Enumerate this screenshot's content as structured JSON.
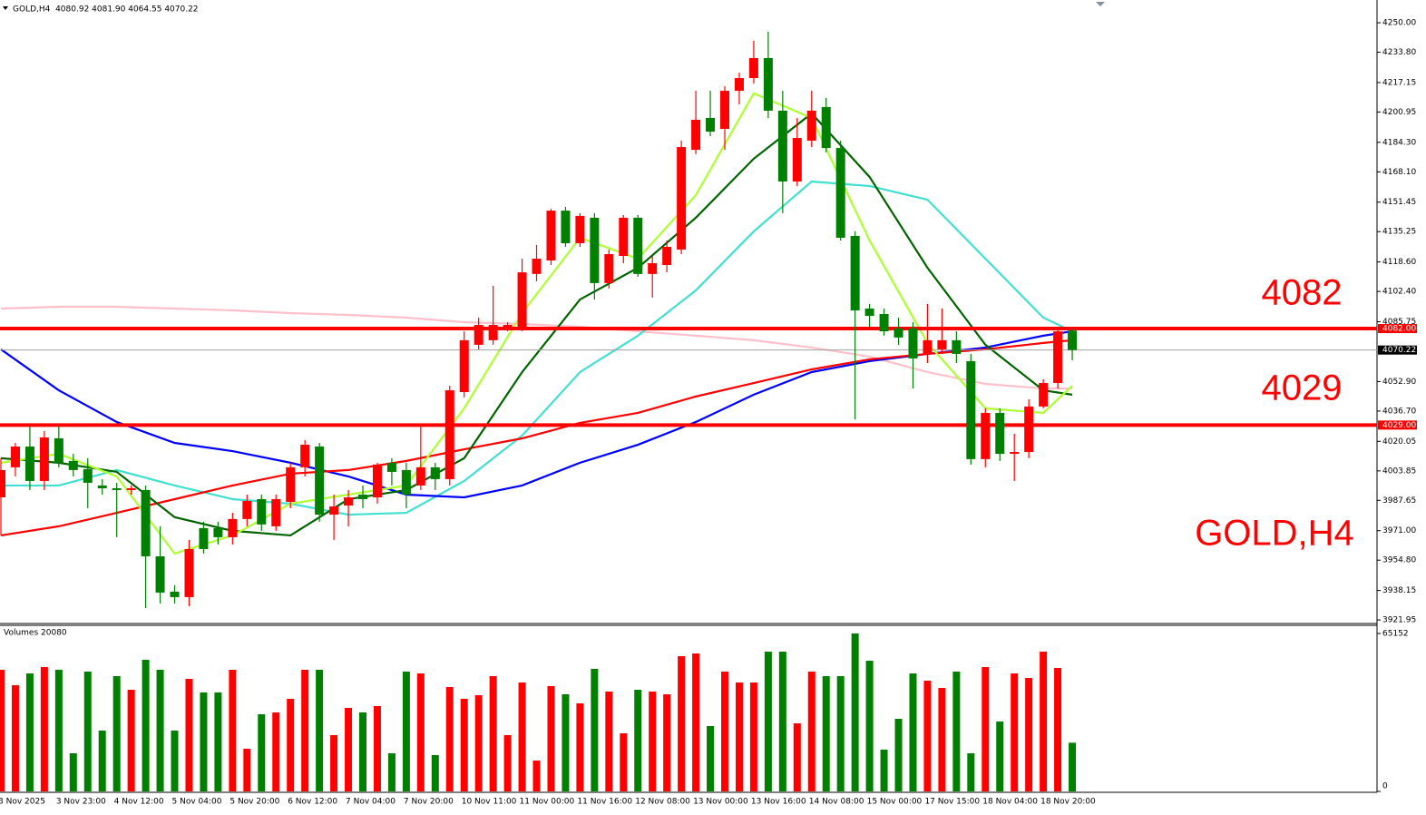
{
  "header": {
    "info": "GOLD,H4  4080.92 4081.90 4064.55 4070.22"
  },
  "chart_data": [
    {
      "type": "candlestick",
      "categories": [
        "3 Nov 2025",
        null,
        null,
        null,
        "3 Nov 23:00",
        null,
        null,
        null,
        "4 Nov 12:00",
        null,
        null,
        null,
        "5 Nov 04:00",
        null,
        null,
        null,
        "5 Nov 20:00",
        null,
        null,
        null,
        "6 Nov 12:00",
        null,
        null,
        null,
        "7 Nov 04:00",
        null,
        null,
        null,
        "7 Nov 20:00",
        null,
        null,
        null,
        "10 Nov 11:00",
        null,
        null,
        null,
        "11 Nov 00:00",
        null,
        null,
        null,
        "11 Nov 16:00",
        null,
        null,
        null,
        "12 Nov 08:00",
        null,
        null,
        null,
        "13 Nov 00:00",
        null,
        null,
        null,
        "13 Nov 16:00",
        null,
        null,
        null,
        "14 Nov 08:00",
        null,
        null,
        null,
        "15 Nov 00:00",
        null,
        null,
        null,
        "17 Nov 15:00",
        null,
        null,
        null,
        "18 Nov 04:00",
        null,
        null,
        null,
        "18 Nov 20:00",
        null,
        null
      ],
      "open": [
        3989.3,
        4005.8,
        4017.2,
        3998.3,
        4021.7,
        4009.3,
        4004.8,
        3995.8,
        3994.3,
        3993.3,
        3993.3,
        3956.9,
        3937.5,
        3934.5,
        3972.4,
        3972.4,
        3967.4,
        3977.4,
        3988.3,
        3973.4,
        3986.8,
        4005.8,
        4017.2,
        3979.8,
        3984.8,
        3990.8,
        3989.3,
        4008.3,
        4004.3,
        3995.8,
        4005.8,
        3999.3,
        4047.1,
        4073.1,
        4075.6,
        4083.0,
        4083.0,
        4112.0,
        4119.4,
        4146.8,
        4128.9,
        4142.9,
        4107.0,
        4121.9,
        4142.9,
        4112.0,
        4116.9,
        4125.4,
        4180.2,
        4197.7,
        4191.7,
        4212.6,
        4219.6,
        4230.6,
        4201.7,
        4162.8,
        4185.2,
        4203.7,
        4181.2,
        4132.9,
        4093.0,
        4090.0,
        4082.0,
        4082.0,
        4068.1,
        4070.6,
        4075.6,
        4064.1,
        4010.3,
        4035.7,
        4013.2,
        4014.2,
        4039.2,
        4052.1,
        4080.92
      ],
      "high": [
        4010.8,
        4019.2,
        4028.2,
        4025.7,
        4028.2,
        4013.2,
        4010.8,
        3999.3,
        3997.3,
        3995.8,
        3995.8,
        3973.4,
        3941.0,
        3965.9,
        3975.9,
        3975.9,
        3980.8,
        3990.8,
        3990.8,
        3990.8,
        4008.3,
        4020.7,
        4019.2,
        3990.8,
        3993.3,
        3995.8,
        4008.3,
        4010.8,
        4008.3,
        4028.2,
        4008.3,
        4050.6,
        4080.5,
        4088.0,
        4105.5,
        4085.5,
        4120.4,
        4127.9,
        4147.8,
        4148.8,
        4145.4,
        4145.4,
        4125.4,
        4144.4,
        4144.4,
        4121.9,
        4130.4,
        4185.2,
        4212.6,
        4212.6,
        4215.1,
        4222.6,
        4240.1,
        4245.1,
        4212.6,
        4197.7,
        4212.6,
        4208.7,
        4185.2,
        4135.4,
        4095.5,
        4093.0,
        4088.0,
        4085.5,
        4095.5,
        4093.0,
        4080.5,
        4068.1,
        4038.2,
        4038.2,
        4024.2,
        4043.2,
        4054.1,
        4083.0,
        4081.9
      ],
      "low": [
        3968.4,
        4000.8,
        3993.3,
        3993.3,
        4005.8,
        4000.8,
        3983.3,
        3990.8,
        3967.4,
        3990.8,
        3928.5,
        3931.0,
        3931.0,
        3929.5,
        3958.4,
        3963.4,
        3963.4,
        3973.4,
        3970.9,
        3970.9,
        3983.3,
        4000.8,
        3975.9,
        3965.9,
        3973.4,
        3983.3,
        3985.8,
        3995.8,
        3983.3,
        3993.3,
        3993.3,
        3995.8,
        4044.2,
        4070.6,
        4073.1,
        4080.5,
        4080.5,
        4108.0,
        4116.9,
        4126.9,
        4126.9,
        4098.0,
        4104.0,
        4117.9,
        4110.5,
        4099.0,
        4112.9,
        4122.9,
        4177.8,
        4187.7,
        4180.2,
        4205.2,
        4216.6,
        4197.7,
        4145.4,
        4160.3,
        4181.7,
        4178.8,
        4130.4,
        4032.2,
        4083.0,
        4078.1,
        4073.1,
        4049.1,
        4063.1,
        4068.1,
        4063.1,
        4007.3,
        4005.8,
        4009.3,
        3998.3,
        4010.8,
        4038.2,
        4049.1,
        4064.55
      ],
      "close": [
        4004.3,
        4017.2,
        3998.3,
        4022.2,
        4008.3,
        4004.3,
        3997.3,
        3994.3,
        3993.3,
        3994.3,
        3956.9,
        3937.0,
        3934.5,
        3960.9,
        3960.9,
        3967.4,
        3977.4,
        3987.3,
        3974.4,
        3988.3,
        4005.8,
        4018.2,
        3979.8,
        3984.3,
        3989.3,
        3988.3,
        4007.3,
        4003.3,
        3990.8,
        4005.8,
        3999.3,
        4048.1,
        4075.6,
        4084.0,
        4084.0,
        4084.0,
        4112.9,
        4120.4,
        4146.8,
        4128.9,
        4143.9,
        4107.0,
        4122.9,
        4142.9,
        4112.0,
        4117.9,
        4126.9,
        4181.7,
        4196.7,
        4190.2,
        4212.6,
        4219.6,
        4230.6,
        4201.7,
        4162.8,
        4186.7,
        4201.7,
        4181.2,
        4131.9,
        4092.0,
        4089.0,
        4080.5,
        4077.1,
        4065.6,
        4075.6,
        4075.6,
        4068.1,
        4010.3,
        4035.7,
        4013.2,
        4014.2,
        4039.2,
        4052.1,
        4080.5,
        4070.22
      ],
      "up_color": "#ff0000",
      "down_color": "#008000",
      "x": [
        0,
        4,
        8,
        12,
        16,
        20,
        24,
        28,
        32,
        36,
        40,
        44,
        48,
        52,
        56,
        60,
        64,
        68,
        72,
        74
      ],
      "lines": [
        {
          "color": "#ffc0cb",
          "values": [
            4093.0,
            4094.0,
            4094.0,
            4093.0,
            4092.0,
            4090.5,
            4089.5,
            4088.0,
            4085.5,
            4084.5,
            4083.0,
            4080.5,
            4078.1,
            4075.6,
            4071.6,
            4066.6,
            4058.1,
            4051.6,
            4049.1,
            4049.1
          ]
        },
        {
          "color": "#40e0d0",
          "values": [
            3995.8,
            3995.8,
            4004.3,
            3995.8,
            3988.3,
            3985.8,
            3979.8,
            3980.8,
            3998.3,
            4023.2,
            4058.1,
            4078.1,
            4103.0,
            4135.4,
            4162.8,
            4160.3,
            4152.8,
            4120.4,
            4088.0,
            4080.5
          ]
        },
        {
          "color": "#0000ff",
          "values": [
            4070.6,
            4048.1,
            4030.7,
            4019.2,
            4014.7,
            4008.3,
            4000.8,
            3990.8,
            3989.3,
            3995.8,
            4008.3,
            4018.2,
            4030.7,
            4045.7,
            4058.1,
            4064.1,
            4068.1,
            4071.6,
            4078.1,
            4080.5
          ]
        },
        {
          "color": "#ff0000",
          "values": [
            3968.4,
            3973.4,
            3980.8,
            3988.3,
            3995.8,
            4002.3,
            4004.3,
            4009.3,
            4015.7,
            4021.7,
            4030.2,
            4035.7,
            4044.7,
            4052.1,
            4059.6,
            4065.1,
            4068.1,
            4070.6,
            4074.1,
            4075.6
          ]
        },
        {
          "color": "#006400",
          "values": [
            4010.8,
            4008.3,
            4003.3,
            3978.4,
            3970.9,
            3968.4,
            3988.3,
            3993.3,
            4010.8,
            4058.1,
            4098.0,
            4115.4,
            4142.9,
            4175.3,
            4200.2,
            4165.3,
            4115.4,
            4073.1,
            4048.1,
            4045.7
          ]
        },
        {
          "color": "#adff2f",
          "values": [
            4008.3,
            4013.2,
            4000.8,
            3958.4,
            3968.4,
            3985.8,
            3990.8,
            3995.8,
            4038.2,
            4090.5,
            4131.9,
            4120.4,
            4155.3,
            4211.2,
            4197.7,
            4130.4,
            4074.1,
            4038.2,
            4035.7,
            4050.6
          ]
        }
      ],
      "hlines": [
        {
          "value": 4082,
          "label": "4082.00",
          "color": "#ff0000"
        },
        {
          "value": 4029,
          "label": "4029.00",
          "color": "#ff0000"
        }
      ],
      "price_line": {
        "value": 4070.22,
        "label": "4070.22",
        "color": "#a0a0a0"
      },
      "annotations": [
        "4082",
        "4029",
        "GOLD,H4"
      ],
      "ylim": [
        3920.5,
        4260.5
      ],
      "yticks": [
        {
          "value": 4250.0,
          "label": "4250.00"
        },
        {
          "value": 4233.8,
          "label": "4233.80"
        },
        {
          "value": 4217.15,
          "label": "4217.15"
        },
        {
          "value": 4200.95,
          "label": "4200.95"
        },
        {
          "value": 4184.3,
          "label": "4184.30"
        },
        {
          "value": 4168.1,
          "label": "4168.10"
        },
        {
          "value": 4151.45,
          "label": "4151.45"
        },
        {
          "value": 4135.25,
          "label": "4135.25"
        },
        {
          "value": 4118.6,
          "label": "4118.60"
        },
        {
          "value": 4102.4,
          "label": "4102.40"
        },
        {
          "value": 4085.75,
          "label": "4085.75"
        },
        {
          "value": 4052.9,
          "label": "4052.90"
        },
        {
          "value": 4036.7,
          "label": "4036.70"
        },
        {
          "value": 4020.05,
          "label": "4020.05"
        },
        {
          "value": 4003.85,
          "label": "4003.85"
        },
        {
          "value": 3987.65,
          "label": "3987.65"
        },
        {
          "value": 3971.0,
          "label": "3971.00"
        },
        {
          "value": 3954.8,
          "label": "3954.80"
        },
        {
          "value": 3938.15,
          "label": "3938.15"
        },
        {
          "value": 3921.95,
          "label": "3921.95"
        }
      ]
    },
    {
      "type": "bar",
      "title": "Volumes 20080",
      "values": [
        50170,
        43805,
        48672,
        51293,
        50170,
        15725,
        49421,
        25085,
        47549,
        41933,
        54288,
        50170,
        25085,
        46426,
        40810,
        40810,
        50170,
        17597,
        31824,
        32573,
        38189,
        50170,
        50170,
        23213,
        34445,
        32573,
        35194,
        15725,
        49421,
        48672,
        14976,
        43056,
        38189,
        39686,
        47549,
        23213,
        44928,
        12730,
        43430,
        40061,
        36317,
        50544,
        41184,
        23962,
        41933,
        41184,
        40061,
        55786,
        56909,
        26957,
        49421,
        44928,
        44928,
        57658,
        57658,
        28080,
        49421,
        47549,
        47549,
        65152,
        53914,
        17222,
        29952,
        48672,
        45677,
        42682,
        49421,
        15725,
        51293,
        28829,
        48672,
        46800,
        57658,
        50918,
        20080
      ],
      "ylim": [
        0,
        68146
      ],
      "yticks": [
        65152,
        0
      ]
    }
  ]
}
